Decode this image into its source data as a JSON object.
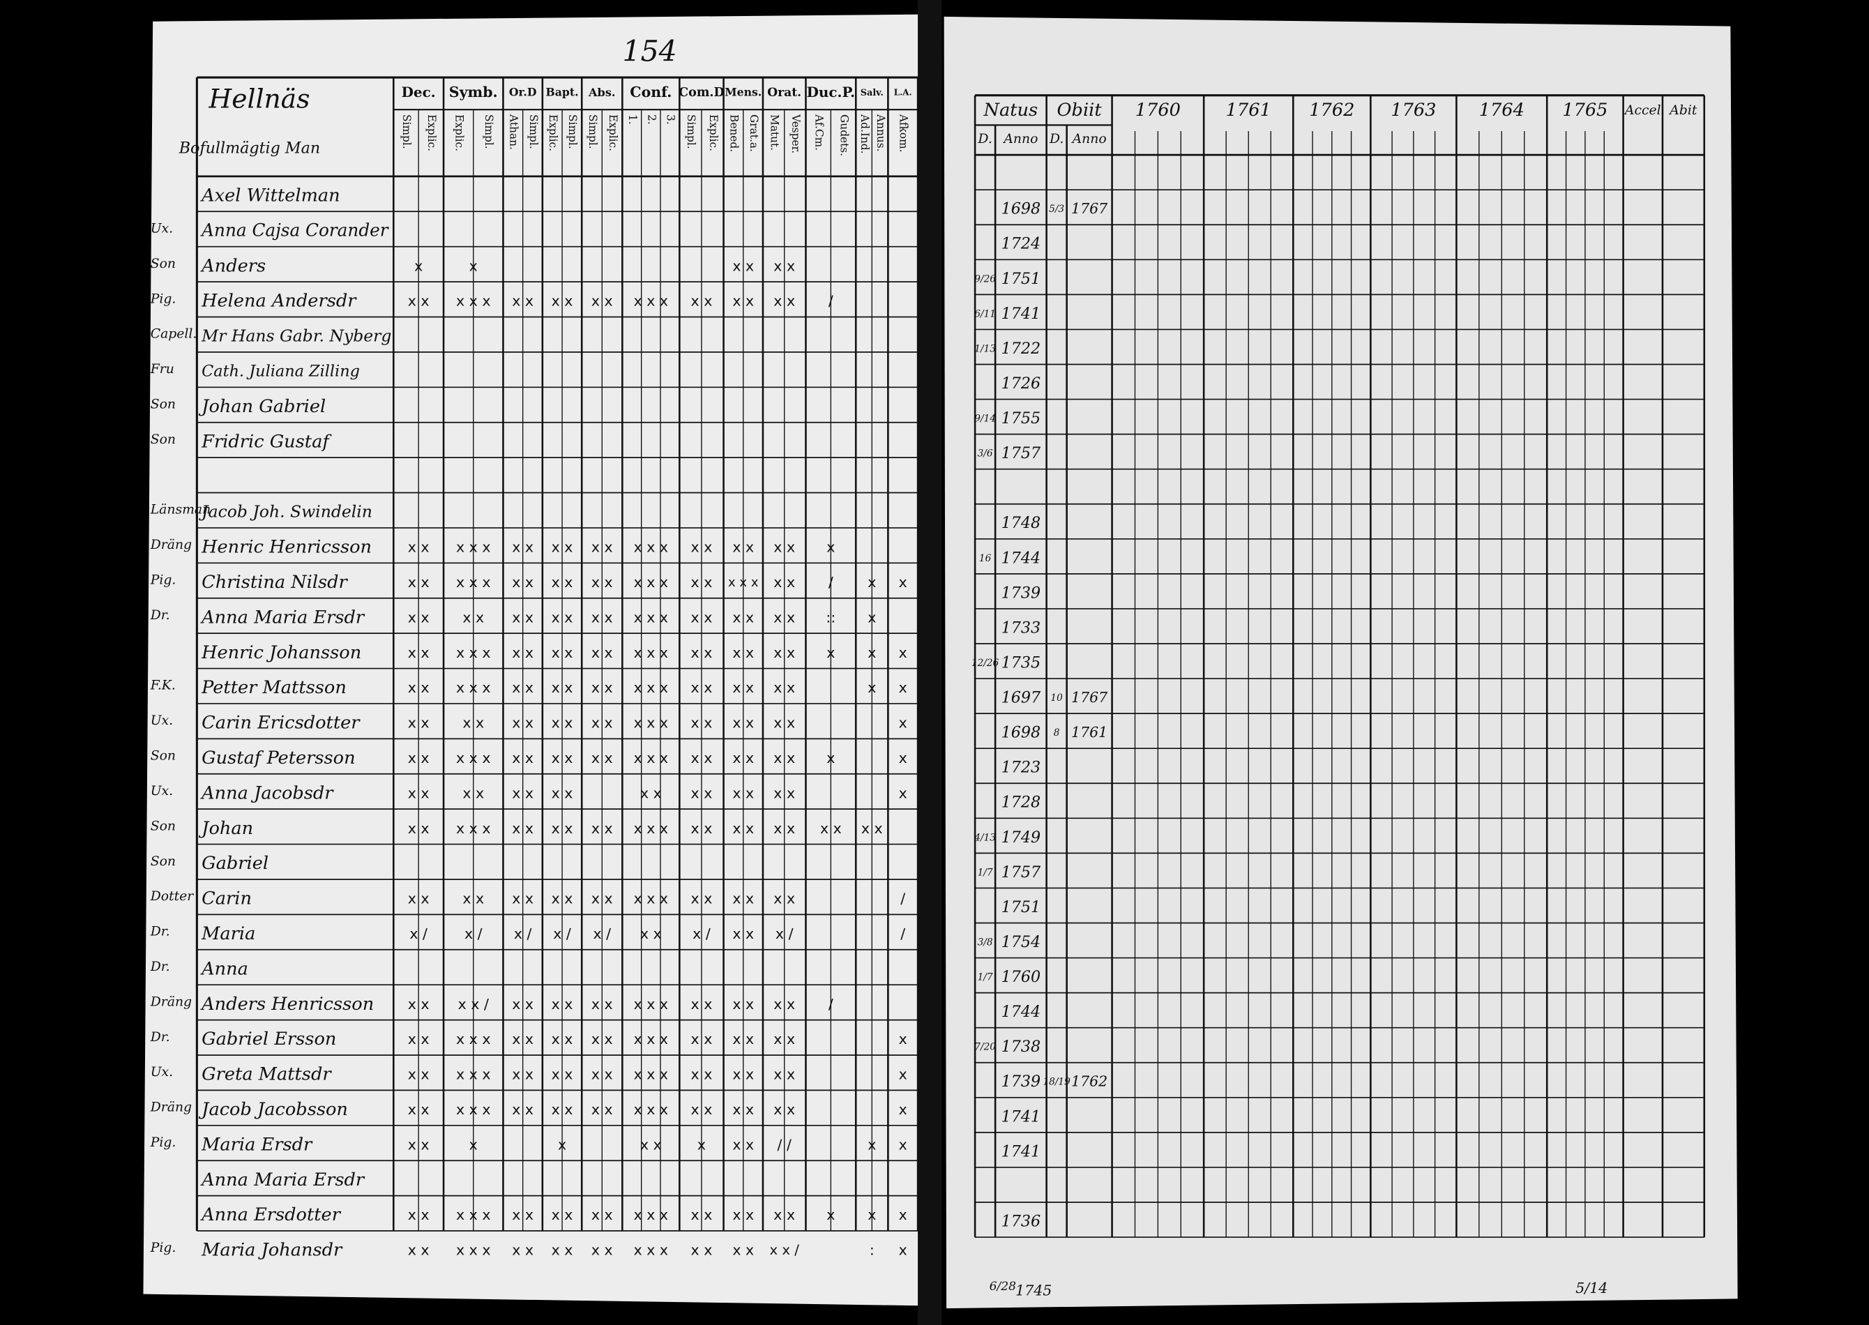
{
  "page_number": "154",
  "left": {
    "parish": "Hellnäs",
    "heading": "Bofullmägtig Man",
    "columns": [
      {
        "name": "Dec.",
        "sub": [
          "Simpl.",
          "Explic."
        ]
      },
      {
        "name": "Symb.",
        "sub": [
          "Explic.",
          "Simpl."
        ]
      },
      {
        "name": "Or.D",
        "sub": [
          "Athan.",
          "Simpl."
        ]
      },
      {
        "name": "Bapt.",
        "sub": [
          "Explic.",
          "Simpl."
        ]
      },
      {
        "name": "Abs.",
        "sub": [
          "Simpl.",
          "Explic."
        ]
      },
      {
        "name": "Conf.",
        "sub": [
          "1.",
          "2.",
          "3."
        ]
      },
      {
        "name": "Com.D",
        "sub": [
          "Simpl.",
          "Explic."
        ]
      },
      {
        "name": "Mens.",
        "sub": [
          "Bened.",
          "Grat.a."
        ]
      },
      {
        "name": "Orat.",
        "sub": [
          "Matut.",
          "Vesper."
        ]
      },
      {
        "name": "Duc.P.",
        "sub": [
          "Af.Cm.",
          "Gudets."
        ]
      },
      {
        "name": "Salv.",
        "sub": [
          "Ad.Ind.",
          "Annus."
        ]
      },
      {
        "name": "L.A.",
        "sub": [
          "Afkom."
        ]
      }
    ],
    "rows": [
      {
        "name": "Axel Wittelman"
      },
      {
        "margin": "Ux.",
        "name": "Anna Cajsa Corander"
      },
      {
        "margin": "Son",
        "name": "Anders",
        "marks": [
          "x",
          "x",
          null,
          null,
          null,
          null,
          null,
          "x x",
          "x x",
          null,
          null,
          null
        ]
      },
      {
        "margin": "Pig.",
        "name": "Helena Andersdr",
        "marks": [
          "x x",
          "x x x",
          "x x",
          "x x",
          "x x",
          "x x x",
          "x x",
          "x x",
          "x x",
          "/",
          null,
          null
        ]
      },
      {
        "margin": "Capell.",
        "name": "Mr Hans Gabr. Nyberg"
      },
      {
        "margin": "Fru",
        "name": "Cath. Juliana Zilling"
      },
      {
        "margin": "Son",
        "name": "Johan Gabriel"
      },
      {
        "margin": "Son",
        "name": "Fridric Gustaf"
      },
      null,
      {
        "margin": "Länsman",
        "name": "Jacob Joh. Swindelin"
      },
      {
        "margin": "Dräng",
        "name": "Henric Henricsson",
        "marks": [
          "x x",
          "x x x",
          "x x",
          "x x",
          "x x",
          "x x x",
          "x x",
          "x x",
          "x x",
          "x",
          null,
          null
        ]
      },
      {
        "margin": "Pig.",
        "name": "Christina Nilsdr",
        "marks": [
          "x x",
          "x x x",
          "x x",
          "x x",
          "x x",
          "x x x",
          "x x",
          "x x x",
          "x x",
          "/",
          "x",
          "x"
        ]
      },
      {
        "margin": "Dr.",
        "name": "Anna Maria Ersdr",
        "marks": [
          "x x",
          "x x",
          "x x",
          "x x",
          "x x",
          "x x x",
          "x x",
          "x x",
          "x x",
          "::",
          "x",
          null
        ]
      },
      {
        "name": "Henric Johansson",
        "marks": [
          "x x",
          "x x x",
          "x x",
          "x x",
          "x x",
          "x x x",
          "x x",
          "x x",
          "x x",
          "x",
          "x",
          "x"
        ]
      },
      {
        "margin": "F.K.",
        "name": "Petter Mattsson",
        "marks": [
          "x x",
          "x x x",
          "x x",
          "x x",
          "x x",
          "x x x",
          "x x",
          "x x",
          "x x",
          null,
          "x",
          "x"
        ]
      },
      {
        "margin": "Ux.",
        "name": "Carin Ericsdotter",
        "marks": [
          "x x",
          "x x",
          "x x",
          "x x",
          "x x",
          "x x x",
          "x x",
          "x x",
          "x x",
          null,
          null,
          "x"
        ]
      },
      {
        "margin": "Son",
        "name": "Gustaf Petersson",
        "marks": [
          "x x",
          "x x x",
          "x x",
          "x x",
          "x x",
          "x x x",
          "x x",
          "x x",
          "x x",
          "x",
          null,
          "x"
        ]
      },
      {
        "margin": "Ux.",
        "name": "Anna Jacobsdr",
        "marks": [
          "x x",
          "x x",
          "x x",
          "x x",
          null,
          "x x",
          "x x",
          "x x",
          "x x",
          null,
          null,
          "x"
        ]
      },
      {
        "margin": "Son",
        "name": "Johan",
        "marks": [
          "x x",
          "x x x",
          "x x",
          "x x",
          "x x",
          "x x x",
          "x x",
          "x x",
          "x x",
          "x x",
          "x x",
          null
        ]
      },
      {
        "margin": "Son",
        "name": "Gabriel"
      },
      {
        "margin": "Dotter",
        "name": "Carin",
        "marks": [
          "x x",
          "x x",
          "x x",
          "x x",
          "x x",
          "x x x",
          "x x",
          "x x",
          "x x",
          null,
          null,
          "/"
        ]
      },
      {
        "margin": "Dr.",
        "name": "Maria",
        "marks": [
          "x /",
          "x /",
          "x /",
          "x /",
          "x /",
          "x x",
          "x /",
          "x x",
          "x /",
          null,
          null,
          "/"
        ]
      },
      {
        "margin": "Dr.",
        "name": "Anna"
      },
      {
        "margin": "Dräng",
        "name": "Anders Henricsson",
        "marks": [
          "x x",
          "x x /",
          "x x",
          "x x",
          "x x",
          "x x x",
          "x x",
          "x x",
          "x x",
          "/",
          null,
          null
        ]
      },
      {
        "margin": "Dr.",
        "name": "Gabriel Ersson",
        "marks": [
          "x x",
          "x x x",
          "x x",
          "x x",
          "x x",
          "x x x",
          "x x",
          "x x",
          "x x",
          null,
          null,
          "x"
        ]
      },
      {
        "margin": "Ux.",
        "name": "Greta Mattsdr",
        "marks": [
          "x x",
          "x x x",
          "x x",
          "x x",
          "x x",
          "x x x",
          "x x",
          "x x",
          "x x",
          null,
          null,
          "x"
        ]
      },
      {
        "margin": "Dräng",
        "name": "Jacob Jacobsson",
        "marks": [
          "x x",
          "x x x",
          "x x",
          "x x",
          "x x",
          "x x x",
          "x x",
          "x x",
          "x x",
          null,
          null,
          "x"
        ]
      },
      {
        "margin": "Pig.",
        "name": "Maria Ersdr",
        "marks": [
          "x x",
          "x",
          null,
          "x",
          null,
          "x x",
          "x",
          "x x",
          "/ /",
          null,
          "x",
          "x"
        ]
      },
      {
        "name": "Anna Maria Ersdr"
      },
      {
        "name": "Anna Ersdotter",
        "marks": [
          "x x",
          "x x x",
          "x x",
          "x x",
          "x x",
          "x x x",
          "x x",
          "x x",
          "x x",
          "x",
          "x",
          "x"
        ]
      },
      {
        "margin": "Pig.",
        "name": "Maria Johansdr",
        "marks": [
          "x x",
          "x x x",
          "x x",
          "x x",
          "x x",
          "x x x",
          "x x",
          "x x",
          "x x /",
          null,
          ":",
          "x"
        ]
      }
    ]
  },
  "right": {
    "columns": [
      "Natus",
      "Obiit",
      "1760",
      "1761",
      "1762",
      "1763",
      "1764",
      "1765",
      "Accel",
      "Abit"
    ],
    "sub": [
      "D.",
      "Anno",
      "D.",
      "Anno"
    ],
    "rows": [
      null,
      {
        "born": "1698",
        "died_day": "5/3",
        "died": "1767"
      },
      {
        "born": "1724"
      },
      {
        "born_day": "9/26",
        "born": "1751"
      },
      {
        "born_day": "6/11",
        "born": "1741"
      },
      {
        "born_day": "1/13",
        "born": "1722"
      },
      {
        "born": "1726"
      },
      {
        "born_day": "9/14",
        "born": "1755"
      },
      {
        "born_day": "3/6",
        "born": "1757"
      },
      null,
      {
        "born": "1748"
      },
      {
        "born_day": "16",
        "born": "1744"
      },
      {
        "born": "1739"
      },
      {
        "born": "1733"
      },
      {
        "born_day": "12/26",
        "born": "1735"
      },
      {
        "born": "1697",
        "died_day": "10",
        "died": "1767"
      },
      {
        "born": "1698",
        "died_day": "8",
        "died": "1761"
      },
      {
        "born": "1723"
      },
      {
        "born": "1728"
      },
      {
        "born_day": "4/13",
        "born": "1749"
      },
      {
        "born_day": "1/7",
        "born": "1757"
      },
      {
        "born": "1751"
      },
      {
        "born_day": "3/8",
        "born": "1754"
      },
      {
        "born_day": "1/7",
        "born": "1760"
      },
      {
        "born": "1744"
      },
      {
        "born_day": "7/20",
        "born": "1738"
      },
      {
        "born": "1739",
        "died_day": "18/19",
        "died": "1762"
      },
      {
        "born": "1741"
      },
      {
        "born": "1741"
      },
      null,
      {
        "born": "1736"
      }
    ]
  },
  "footer": {
    "left_note": "6/28",
    "year": "1745",
    "right_note": "5/14"
  }
}
